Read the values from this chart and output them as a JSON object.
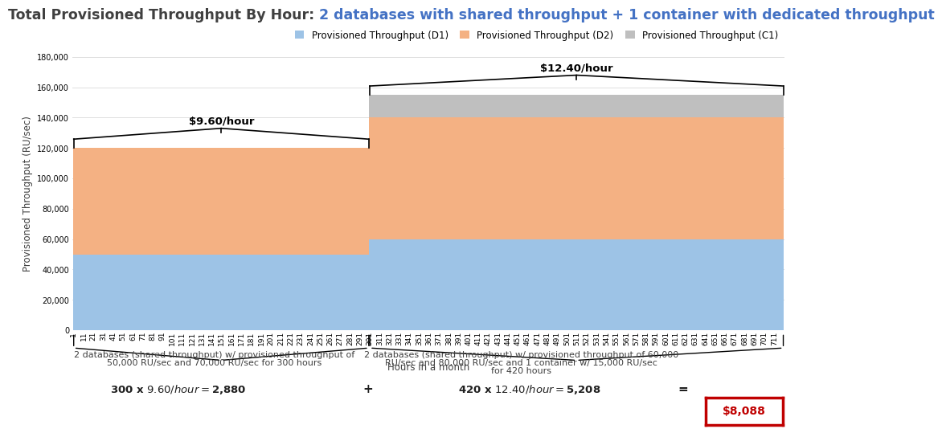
{
  "title_black": "Total Provisioned Throughput By Hour: ",
  "title_blue": "2 databases with shared throughput + 1 container with dedicated throughput",
  "ylabel": "Provisioned Throughput (RU/sec)",
  "xlabel": "Hours in a month",
  "phase1_hours": 300,
  "phase2_hours": 420,
  "d1_phase1": 50000,
  "d2_phase1": 70000,
  "c1_phase1": 0,
  "d1_phase2": 60000,
  "d2_phase2": 80000,
  "c1_phase2": 15000,
  "color_d1": "#9DC3E6",
  "color_d2": "#F4B183",
  "color_c1": "#BFBFBF",
  "ylim_max": 180000,
  "ytick_step": 20000,
  "legend_d1": "Provisioned Throughput (D1)",
  "legend_d2": "Provisioned Throughput (D2)",
  "legend_c1": "Provisioned Throughput (C1)",
  "brace1_label": "$9.60/hour",
  "brace2_label": "$12.40/hour",
  "annotation1_line1": "2 databases (shared throughput) w/ provisioned throughput of",
  "annotation1_line2": "50,000 RU/sec and 70,000 RU/sec for 300 hours",
  "annotation2_line1": "2 databases (shared throughput) w/ provisioned throughput of 60,000",
  "annotation2_line2": "RU/sec and 80,000 RU/sec and 1 container w/ 15,000 RU/sec",
  "annotation2_line3": "for 420 hours",
  "calc1": "300 x $9.60/hour = $2,880",
  "calc_plus": "+",
  "calc2": "420 x $12.40/hour = $5,208",
  "calc_equals": "=",
  "calc_total": "$8,088",
  "background_color": "#FFFFFF",
  "title_fontsize": 12.5,
  "axis_fontsize": 8.5,
  "tick_fontsize": 7
}
